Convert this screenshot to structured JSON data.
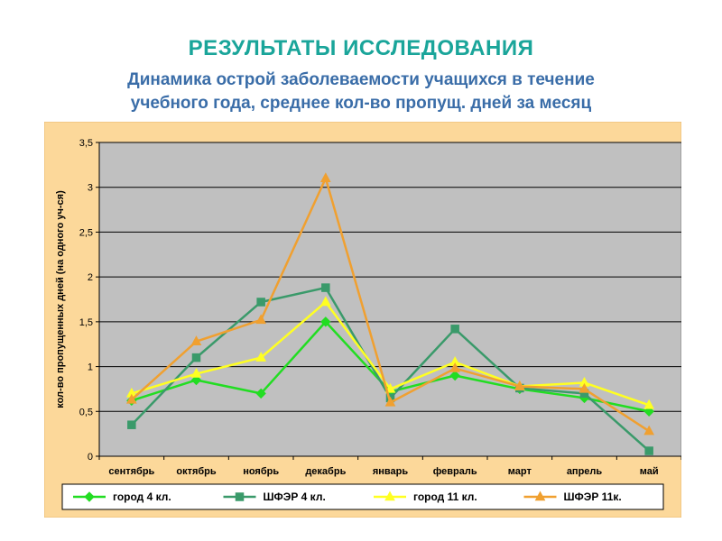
{
  "title": "РЕЗУЛЬТАТЫ ИССЛЕДОВАНИЯ",
  "subtitle_line1": "Динамика острой заболеваемости учащихся в течение",
  "subtitle_line2": "учебного года, среднее кол-во пропущ. дней за месяц",
  "colors": {
    "frame_bg": "#fcd89a",
    "plot_bg": "#c0c0c0",
    "legend_bg": "#ffffff"
  },
  "chart_data": {
    "type": "line",
    "ylabel": "кол-во пропущенных дней (на одного уч-ся)",
    "xlabel": "",
    "ylim": [
      0,
      3.5
    ],
    "grid": true,
    "legend_position": "bottom",
    "categories": [
      "сентябрь",
      "октябрь",
      "ноябрь",
      "декабрь",
      "январь",
      "февраль",
      "март",
      "апрель",
      "май"
    ],
    "y_ticks": [
      "0",
      "0,5",
      "1",
      "1,5",
      "2",
      "2,5",
      "3",
      "3,5"
    ],
    "series": [
      {
        "name": "город 4 кл.",
        "color": "#22dd22",
        "marker": "diamond",
        "values": [
          0.62,
          0.85,
          0.7,
          1.5,
          0.72,
          0.9,
          0.75,
          0.65,
          0.5
        ]
      },
      {
        "name": "ШФЭР 4 кл.",
        "color": "#3a9a6a",
        "marker": "square",
        "values": [
          0.35,
          1.1,
          1.72,
          1.88,
          0.65,
          1.42,
          0.76,
          0.7,
          0.06
        ]
      },
      {
        "name": "город 11 кл.",
        "color": "#ffff22",
        "marker": "triangle",
        "values": [
          0.7,
          0.92,
          1.1,
          1.72,
          0.75,
          1.05,
          0.78,
          0.82,
          0.57
        ]
      },
      {
        "name": "ШФЭР 11к.",
        "color": "#f0a030",
        "marker": "triangle",
        "values": [
          0.63,
          1.28,
          1.52,
          3.1,
          0.6,
          0.98,
          0.78,
          0.75,
          0.28
        ]
      }
    ]
  }
}
